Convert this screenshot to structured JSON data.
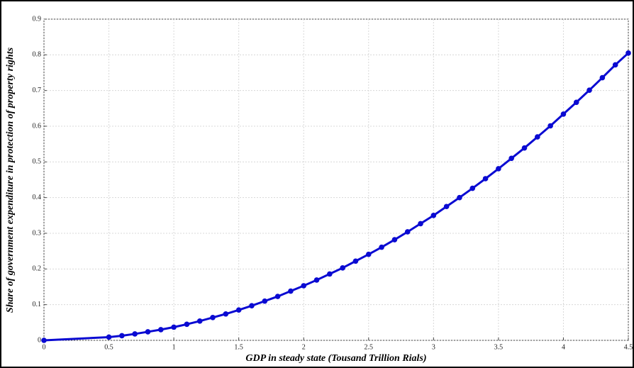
{
  "chart_data": {
    "type": "line",
    "xlabel": "GDP in steady state (Tousand Trillion Rials)",
    "ylabel": "Share of government expenditure in protection of property rights",
    "x": [
      0,
      0.5,
      0.6,
      0.7,
      0.8,
      0.9,
      1.0,
      1.1,
      1.2,
      1.3,
      1.4,
      1.5,
      1.6,
      1.7,
      1.8,
      1.9,
      2.0,
      2.1,
      2.2,
      2.3,
      2.4,
      2.5,
      2.6,
      2.7,
      2.8,
      2.9,
      3.0,
      3.1,
      3.2,
      3.3,
      3.4,
      3.5,
      3.6,
      3.7,
      3.8,
      3.9,
      4.0,
      4.1,
      4.2,
      4.3,
      4.4,
      4.5
    ],
    "series": [
      {
        "color": "#0a0ad2",
        "values": [
          0,
          0.009,
          0.013,
          0.018,
          0.024,
          0.03,
          0.037,
          0.045,
          0.054,
          0.064,
          0.074,
          0.085,
          0.097,
          0.11,
          0.123,
          0.138,
          0.153,
          0.169,
          0.186,
          0.203,
          0.222,
          0.241,
          0.261,
          0.282,
          0.304,
          0.327,
          0.35,
          0.375,
          0.4,
          0.426,
          0.453,
          0.481,
          0.51,
          0.539,
          0.57,
          0.601,
          0.634,
          0.667,
          0.701,
          0.736,
          0.772,
          0.805
        ]
      }
    ],
    "xlim": [
      0,
      4.5
    ],
    "xticks": [
      0,
      0.5,
      1,
      1.5,
      2,
      2.5,
      3,
      3.5,
      4,
      4.5
    ],
    "ylim": [
      0,
      0.9
    ],
    "yticks": [
      0,
      0.1,
      0.2,
      0.3,
      0.4,
      0.5,
      0.6,
      0.7,
      0.8,
      0.9
    ],
    "grid": true
  }
}
